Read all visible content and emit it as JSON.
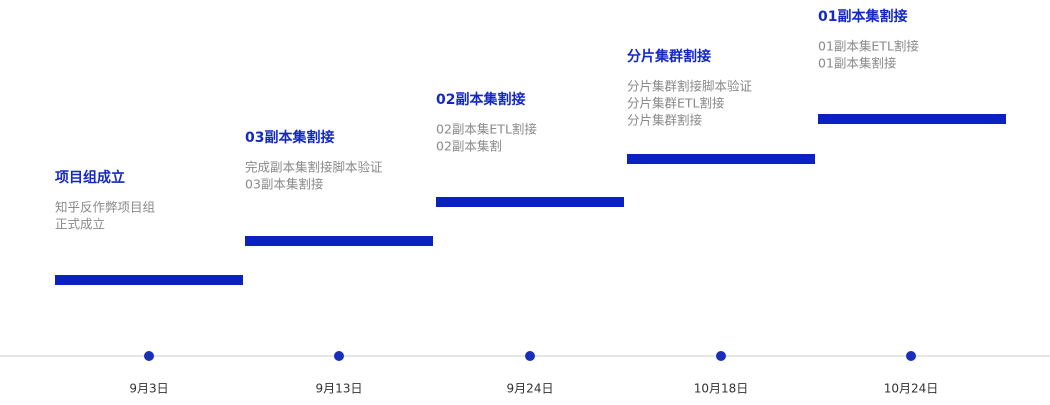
{
  "milestones": [
    {
      "title": "项目组成立",
      "description": [
        "知乎反作弊项目组",
        "正式成立"
      ],
      "date": "9月3日"
    },
    {
      "title": "03副本集割接",
      "description": [
        "完成副本集割接脚本验证",
        "03副本集割接"
      ],
      "date": "9月13日"
    },
    {
      "title": "02副本集割接",
      "description": [
        "02副本集ETL割接",
        "02副本集割"
      ],
      "date": "9月24日"
    },
    {
      "title": "分片集群割接",
      "description": [
        "分片集群割接脚本验证",
        "分片集群ETL割接",
        "分片集群割接"
      ],
      "date": "10月18日"
    },
    {
      "title": "01副本集割接",
      "description": [
        "01副本集ETL割接",
        "01副本集割接"
      ],
      "date": "10月24日"
    }
  ]
}
